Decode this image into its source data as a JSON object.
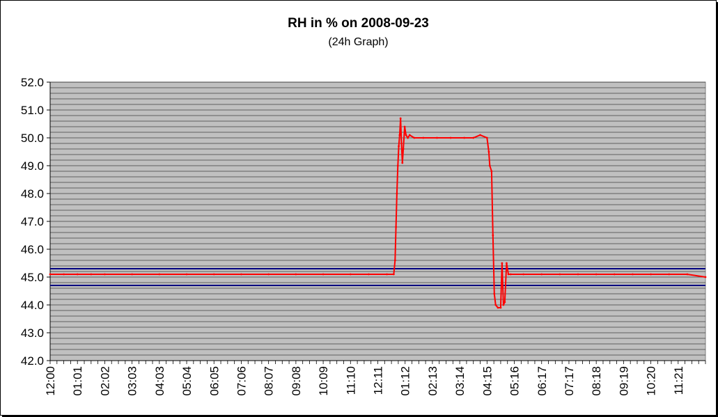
{
  "chart_data": {
    "type": "line",
    "title": "RH in % on 2008-09-23",
    "subtitle": "(24h Graph)",
    "xlabel": "",
    "ylabel": "",
    "ylim": [
      42.0,
      52.0
    ],
    "y_ticks": [
      "42.0",
      "43.0",
      "44.0",
      "45.0",
      "46.0",
      "47.0",
      "48.0",
      "49.0",
      "50.0",
      "51.0",
      "52.0"
    ],
    "x_tick_labels": [
      "12:00",
      "01:01",
      "02:02",
      "03:03",
      "04:03",
      "05:04",
      "06:05",
      "07:06",
      "08:07",
      "09:08",
      "10:09",
      "11:10",
      "12:11",
      "01:12",
      "02:13",
      "03:14",
      "04:15",
      "05:16",
      "06:17",
      "07:17",
      "08:18",
      "09:19",
      "10:20",
      "11:21"
    ],
    "x_range_minutes": [
      0,
      1440
    ],
    "reference_lines": [
      45.3,
      44.7
    ],
    "colors": {
      "series": "#ff0000",
      "reference": "#000080",
      "plot_bg": "#c0c0c0",
      "grid": "#000000"
    },
    "grid": true,
    "legend": "none",
    "series": [
      {
        "points": [
          [
            0,
            45.1
          ],
          [
            30,
            45.1
          ],
          [
            60,
            45.1
          ],
          [
            90,
            45.1
          ],
          [
            120,
            45.1
          ],
          [
            180,
            45.1
          ],
          [
            240,
            45.1
          ],
          [
            300,
            45.1
          ],
          [
            360,
            45.1
          ],
          [
            420,
            45.1
          ],
          [
            480,
            45.1
          ],
          [
            540,
            45.1
          ],
          [
            600,
            45.1
          ],
          [
            660,
            45.1
          ],
          [
            700,
            45.1
          ],
          [
            740,
            45.1
          ],
          [
            755,
            45.1
          ],
          [
            758,
            45.6
          ],
          [
            760,
            46.8
          ],
          [
            762,
            48.0
          ],
          [
            764,
            49.0
          ],
          [
            766,
            49.7
          ],
          [
            768,
            50.1
          ],
          [
            770,
            50.7
          ],
          [
            772,
            49.8
          ],
          [
            774,
            49.1
          ],
          [
            776,
            49.6
          ],
          [
            779,
            50.4
          ],
          [
            782,
            50.1
          ],
          [
            786,
            50.0
          ],
          [
            790,
            50.1
          ],
          [
            800,
            50.0
          ],
          [
            820,
            50.0
          ],
          [
            850,
            50.0
          ],
          [
            880,
            50.0
          ],
          [
            910,
            50.0
          ],
          [
            930,
            50.0
          ],
          [
            945,
            50.1
          ],
          [
            960,
            50.0
          ],
          [
            964,
            49.5
          ],
          [
            966,
            49.0
          ],
          [
            970,
            48.8
          ],
          [
            973,
            46.5
          ],
          [
            976,
            44.4
          ],
          [
            979,
            44.0
          ],
          [
            984,
            43.9
          ],
          [
            990,
            43.9
          ],
          [
            993,
            45.5
          ],
          [
            996,
            44.0
          ],
          [
            999,
            44.1
          ],
          [
            1003,
            45.5
          ],
          [
            1007,
            45.1
          ],
          [
            1012,
            45.1
          ],
          [
            1040,
            45.1
          ],
          [
            1080,
            45.1
          ],
          [
            1120,
            45.1
          ],
          [
            1160,
            45.1
          ],
          [
            1200,
            45.1
          ],
          [
            1240,
            45.1
          ],
          [
            1280,
            45.1
          ],
          [
            1320,
            45.1
          ],
          [
            1360,
            45.1
          ],
          [
            1400,
            45.1
          ],
          [
            1440,
            45.0
          ]
        ]
      }
    ]
  }
}
